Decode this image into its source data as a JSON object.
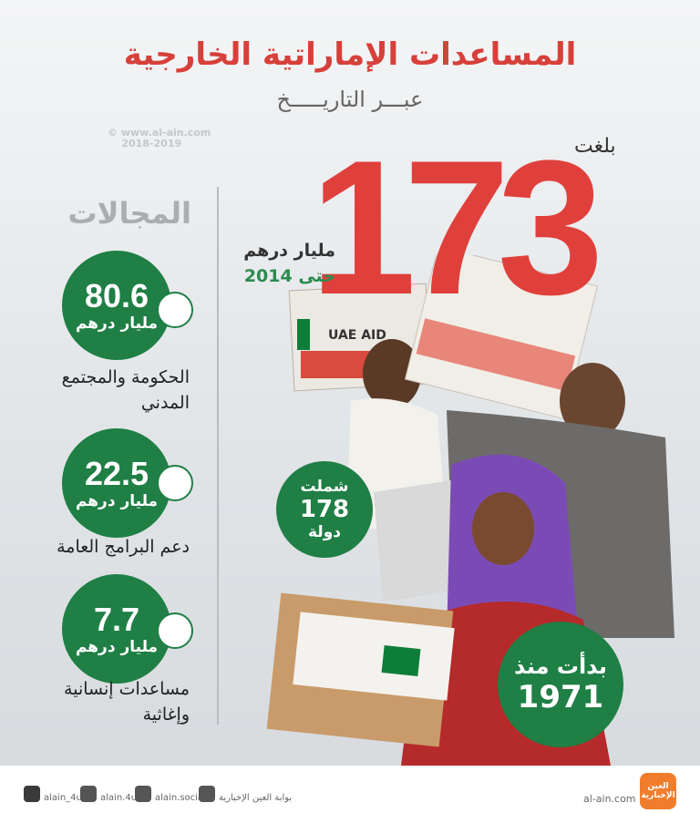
{
  "header": {
    "title": "المساعدات الإماراتية الخارجية",
    "subtitle": "عبـــر التاريـــــخ"
  },
  "watermark": {
    "site": "www.al-ain.com",
    "years": "2018-2019"
  },
  "total": {
    "lead": "بلغت",
    "amount": 173,
    "unit": "مليار درهم",
    "until": "حتى 2014"
  },
  "sectors": {
    "heading": "المجالات",
    "items": [
      {
        "amount": 80.6,
        "unit": "مليار درهم",
        "label": "الحكومة والمجتمع المدني"
      },
      {
        "amount": 22.5,
        "unit": "مليار درهم",
        "label": "دعم البرامج العامة"
      },
      {
        "amount": 7.7,
        "unit": "مليار درهم",
        "label": "مساعدات إنسانية وإغاثية"
      }
    ]
  },
  "countries": {
    "lead": "شملت",
    "count": 178,
    "unit": "دولة"
  },
  "start": {
    "lead": "بدأت منذ",
    "year": 1971
  },
  "photo": {
    "box_label": "UAE AID"
  },
  "footer": {
    "twitter": "alain_4u",
    "instagram": "alain.4u",
    "facebook": "alain.social",
    "youtube": "بوابة العين الإخبارية",
    "site": "al-ain.com",
    "logo": "العين الإخبارية"
  }
}
